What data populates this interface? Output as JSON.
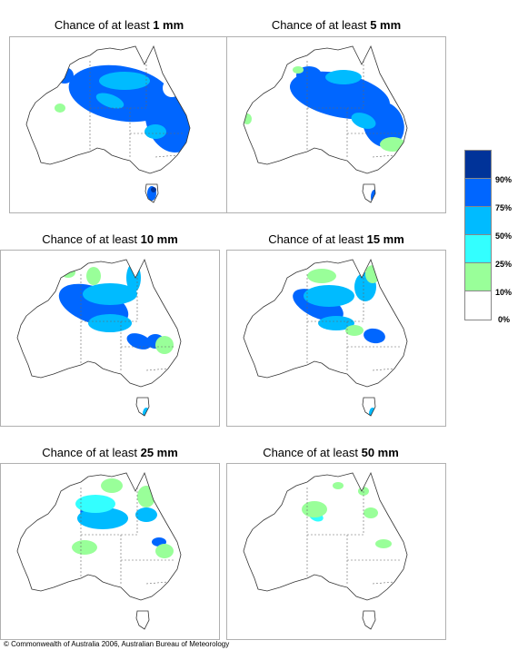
{
  "panels": [
    {
      "prefix": "Chance of at least ",
      "amount": "1 mm"
    },
    {
      "prefix": "Chance of at least ",
      "amount": "5 mm"
    },
    {
      "prefix": "Chance of at least ",
      "amount": "10 mm"
    },
    {
      "prefix": "Chance of at least ",
      "amount": "15 mm"
    },
    {
      "prefix": "Chance of at least ",
      "amount": "25 mm"
    },
    {
      "prefix": "Chance of at least ",
      "amount": "50 mm"
    }
  ],
  "legend": {
    "labels": [
      "90%",
      "75%",
      "50%",
      "25%",
      "10%",
      "0%"
    ],
    "colors": {
      "over90": "#003399",
      "75to90": "#0066ff",
      "50to75": "#00bbff",
      "25to50": "#33ffff",
      "10to25": "#99ff99",
      "0to10": "#ffffff"
    }
  },
  "footer": "© Commonwealth of Australia 2006, Australian Bureau of Meteorology"
}
